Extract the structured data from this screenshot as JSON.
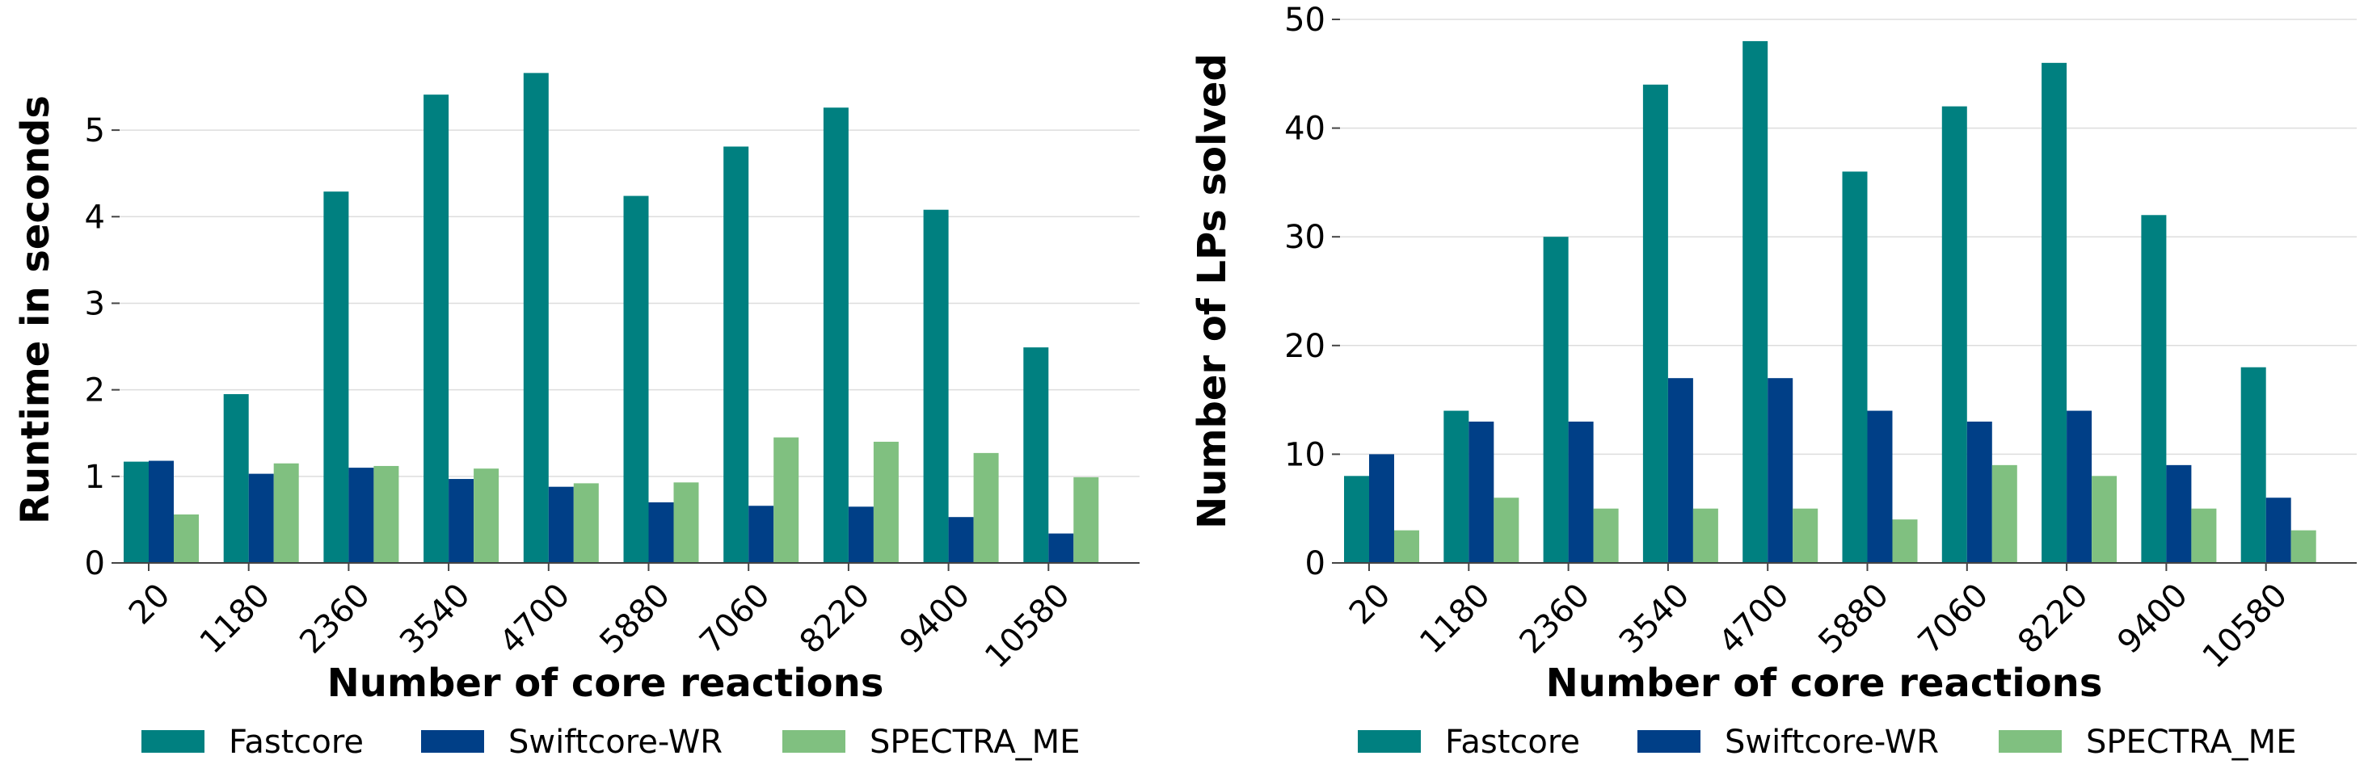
{
  "colors": {
    "fastcore": "#008080",
    "swiftcore": "#003f87",
    "spectra": "#80c080",
    "grid": "#dddddd",
    "axis": "#444444"
  },
  "chart_data": [
    {
      "type": "bar",
      "title": "",
      "xlabel": "Number of core reactions",
      "ylabel": "Runtime in seconds",
      "categories": [
        "20",
        "1180",
        "2360",
        "3540",
        "4700",
        "5880",
        "7060",
        "8220",
        "9400",
        "10580"
      ],
      "ylim": [
        0,
        5.85
      ],
      "yticks": [
        0,
        1,
        2,
        3,
        4,
        5
      ],
      "grid": "horizontal",
      "legend_position": "bottom",
      "series": [
        {
          "name": "Fastcore",
          "values": [
            1.17,
            1.95,
            4.29,
            5.41,
            5.66,
            4.24,
            4.81,
            5.26,
            4.08,
            2.49
          ]
        },
        {
          "name": "Swiftcore-WR",
          "values": [
            1.18,
            1.03,
            1.1,
            0.97,
            0.88,
            0.7,
            0.66,
            0.65,
            0.53,
            0.34
          ]
        },
        {
          "name": "SPECTRA_ME",
          "values": [
            0.56,
            1.15,
            1.12,
            1.09,
            0.92,
            0.93,
            1.45,
            1.4,
            1.27,
            0.99
          ]
        }
      ]
    },
    {
      "type": "bar",
      "title": "",
      "xlabel": "Number of core reactions",
      "ylabel": "Number of LPs solved",
      "categories": [
        "20",
        "1180",
        "2360",
        "3540",
        "4700",
        "5880",
        "7060",
        "8220",
        "9400",
        "10580"
      ],
      "ylim": [
        0,
        50
      ],
      "yticks": [
        0,
        10,
        20,
        30,
        40,
        50
      ],
      "grid": "horizontal",
      "legend_position": "bottom",
      "series": [
        {
          "name": "Fastcore",
          "values": [
            8,
            14,
            30,
            44,
            48,
            36,
            42,
            46,
            32,
            18
          ]
        },
        {
          "name": "Swiftcore-WR",
          "values": [
            10,
            13,
            13,
            17,
            17,
            14,
            13,
            14,
            9,
            6
          ]
        },
        {
          "name": "SPECTRA_ME",
          "values": [
            3,
            6,
            5,
            5,
            5,
            4,
            9,
            8,
            5,
            3
          ]
        }
      ]
    }
  ]
}
